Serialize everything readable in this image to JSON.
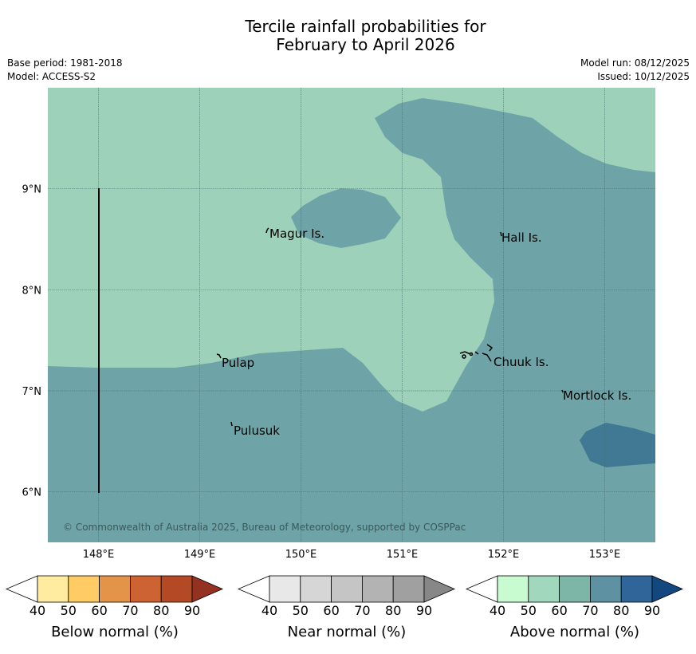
{
  "title": {
    "line1": "Tercile rainfall probabilities for",
    "line2": "February to April 2026"
  },
  "meta": {
    "base_period": "Base period: 1981-2018",
    "model": "Model: ACCESS-S2",
    "model_run": "Model run: 08/12/2025",
    "issued": "Issued: 10/12/2025"
  },
  "map": {
    "extent": {
      "lon_min": 147.5,
      "lon_max": 153.5,
      "lat_min": 5.5,
      "lat_max": 10.0
    },
    "lat_ticks": [
      {
        "value": 9,
        "label": "9°N"
      },
      {
        "value": 8,
        "label": "8°N"
      },
      {
        "value": 7,
        "label": "7°N"
      },
      {
        "value": 6,
        "label": "6°N"
      }
    ],
    "lon_ticks": [
      {
        "value": 148,
        "label": "148°E"
      },
      {
        "value": 149,
        "label": "149°E"
      },
      {
        "value": 150,
        "label": "150°E"
      },
      {
        "value": 151,
        "label": "151°E"
      },
      {
        "value": 152,
        "label": "152°E"
      },
      {
        "value": 153,
        "label": "153°E"
      }
    ],
    "colors": {
      "above_50": "#9dd1ba",
      "above_60": "#6ea4a8",
      "above_70": "#417893",
      "grid": "#456d6e",
      "land": "#000000"
    },
    "islands": [
      {
        "name": "Magur Is."
      },
      {
        "name": "Hall Is."
      },
      {
        "name": "Pulap"
      },
      {
        "name": "Chuuk Is."
      },
      {
        "name": "Mortlock Is."
      },
      {
        "name": "Pulusuk"
      }
    ],
    "copyright": "© Commonwealth of Australia 2025, Bureau of Meteorology, supported by COSPPac"
  },
  "legends": [
    {
      "label": "Below normal (%)",
      "ticks": [
        "40",
        "50",
        "60",
        "70",
        "80",
        "90"
      ],
      "colors": [
        "#ffffff",
        "#ffeca0",
        "#fecb65",
        "#e39448",
        "#cd6233",
        "#b34925",
        "#943221"
      ]
    },
    {
      "label": "Near normal (%)",
      "ticks": [
        "40",
        "50",
        "60",
        "70",
        "80",
        "90"
      ],
      "colors": [
        "#ffffff",
        "#e8e8e8",
        "#d6d6d6",
        "#c5c5c5",
        "#b3b3b3",
        "#a0a0a0",
        "#878787"
      ]
    },
    {
      "label": "Above normal (%)",
      "ticks": [
        "40",
        "50",
        "60",
        "70",
        "80",
        "90"
      ],
      "colors": [
        "#ffffff",
        "#c9fbd0",
        "#a0d7bd",
        "#7db5a7",
        "#5e91a2",
        "#30659a",
        "#12477f"
      ]
    }
  ]
}
